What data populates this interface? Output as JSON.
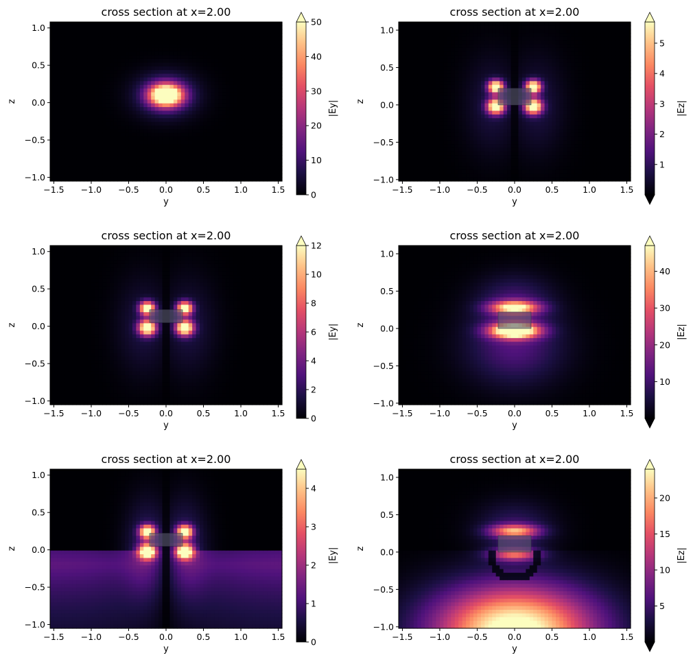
{
  "chart_data": [
    {
      "type": "heatmap",
      "title": "cross section at x=2.00",
      "xlabel": "y",
      "ylabel": "z",
      "xlim": [
        -1.55,
        1.55
      ],
      "ylim": [
        -1.05,
        1.08
      ],
      "xticks": [
        -1.5,
        -1.0,
        -0.5,
        0.0,
        0.5,
        1.0,
        1.5
      ],
      "xtick_labels": [
        "−1.5",
        "−1.0",
        "−0.5",
        "0.0",
        "0.5",
        "1.0",
        "1.5"
      ],
      "yticks": [
        -1.0,
        -0.5,
        0.0,
        0.5,
        1.0
      ],
      "ytick_labels": [
        "−1.0",
        "−0.5",
        "0.0",
        "0.5",
        "1.0"
      ],
      "colorbar": {
        "label": "|Ey|",
        "min": 0,
        "max": 50,
        "ticks": [
          0,
          10,
          20,
          30,
          40,
          50
        ],
        "tick_labels": [
          "0",
          "10",
          "20",
          "30",
          "40",
          "50"
        ],
        "extend": "max"
      },
      "colormap": "magma",
      "pattern": "central",
      "waveguide": {
        "y": [
          -0.22,
          0.22
        ],
        "z": [
          0.0,
          0.22
        ],
        "shown": false
      }
    },
    {
      "type": "heatmap",
      "title": "cross section at x=2.00",
      "xlabel": "y",
      "ylabel": "z",
      "xlim": [
        -1.55,
        1.55
      ],
      "ylim": [
        -1.02,
        1.11
      ],
      "xticks": [
        -1.5,
        -1.0,
        -0.5,
        0.0,
        0.5,
        1.0,
        1.5
      ],
      "xtick_labels": [
        "−1.5",
        "−1.0",
        "−0.5",
        "0.0",
        "0.5",
        "1.0",
        "1.5"
      ],
      "yticks": [
        -1.0,
        -0.5,
        0.0,
        0.5,
        1.0
      ],
      "ytick_labels": [
        "−1.0",
        "−0.5",
        "0.0",
        "0.5",
        "1.0"
      ],
      "colorbar": {
        "label": "|Ez|",
        "min": 0,
        "max": 5.7,
        "ticks": [
          1,
          2,
          3,
          4,
          5
        ],
        "tick_labels": [
          "1",
          "2",
          "3",
          "4",
          "5"
        ],
        "extend": "both"
      },
      "colormap": "magma",
      "pattern": "four-lobe",
      "waveguide": {
        "y": [
          -0.22,
          0.22
        ],
        "z": [
          0.0,
          0.22
        ],
        "shown": true
      }
    },
    {
      "type": "heatmap",
      "title": "cross section at x=2.00",
      "xlabel": "y",
      "ylabel": "z",
      "xlim": [
        -1.55,
        1.55
      ],
      "ylim": [
        -1.05,
        1.08
      ],
      "xticks": [
        -1.5,
        -1.0,
        -0.5,
        0.0,
        0.5,
        1.0,
        1.5
      ],
      "xtick_labels": [
        "−1.5",
        "−1.0",
        "−0.5",
        "0.0",
        "0.5",
        "1.0",
        "1.5"
      ],
      "yticks": [
        -1.0,
        -0.5,
        0.0,
        0.5,
        1.0
      ],
      "ytick_labels": [
        "−1.0",
        "−0.5",
        "0.0",
        "0.5",
        "1.0"
      ],
      "colorbar": {
        "label": "|Ey|",
        "min": 0,
        "max": 12,
        "ticks": [
          0,
          2,
          4,
          6,
          8,
          10,
          12
        ],
        "tick_labels": [
          "0",
          "2",
          "4",
          "6",
          "8",
          "10",
          "12"
        ],
        "extend": "max"
      },
      "colormap": "magma",
      "pattern": "four-lobe",
      "waveguide": {
        "y": [
          -0.22,
          0.22
        ],
        "z": [
          0.05,
          0.22
        ],
        "shown": true
      }
    },
    {
      "type": "heatmap",
      "title": "cross section at x=2.00",
      "xlabel": "y",
      "ylabel": "z",
      "xlim": [
        -1.55,
        1.55
      ],
      "ylim": [
        -1.02,
        1.11
      ],
      "xticks": [
        -1.5,
        -1.0,
        -0.5,
        0.0,
        0.5,
        1.0,
        1.5
      ],
      "xtick_labels": [
        "−1.5",
        "−1.0",
        "−0.5",
        "0.0",
        "0.5",
        "1.0",
        "1.5"
      ],
      "yticks": [
        -1.0,
        -0.5,
        0.0,
        0.5,
        1.0
      ],
      "ytick_labels": [
        "−1.0",
        "−0.5",
        "0.0",
        "0.5",
        "1.0"
      ],
      "colorbar": {
        "label": "|Ez|",
        "min": 0,
        "max": 47,
        "ticks": [
          10,
          20,
          30,
          40
        ],
        "tick_labels": [
          "10",
          "20",
          "30",
          "40"
        ],
        "extend": "both"
      },
      "colormap": "magma",
      "pattern": "top-bottom",
      "waveguide": {
        "y": [
          -0.22,
          0.22
        ],
        "z": [
          0.0,
          0.22
        ],
        "shown": true
      }
    },
    {
      "type": "heatmap",
      "title": "cross section at x=2.00",
      "xlabel": "y",
      "ylabel": "z",
      "xlim": [
        -1.55,
        1.55
      ],
      "ylim": [
        -1.05,
        1.08
      ],
      "xticks": [
        -1.5,
        -1.0,
        -0.5,
        0.0,
        0.5,
        1.0,
        1.5
      ],
      "xtick_labels": [
        "−1.5",
        "−1.0",
        "−0.5",
        "0.0",
        "0.5",
        "1.0",
        "1.5"
      ],
      "yticks": [
        -1.0,
        -0.5,
        0.0,
        0.5,
        1.0
      ],
      "ytick_labels": [
        "−1.0",
        "−0.5",
        "0.0",
        "0.5",
        "1.0"
      ],
      "colorbar": {
        "label": "|Ey|",
        "min": 0,
        "max": 4.5,
        "ticks": [
          0,
          1,
          2,
          3,
          4
        ],
        "tick_labels": [
          "0",
          "1",
          "2",
          "3",
          "4"
        ],
        "extend": "max"
      },
      "colormap": "magma",
      "pattern": "four-lobe-substrate",
      "waveguide": {
        "y": [
          -0.22,
          0.22
        ],
        "z": [
          0.05,
          0.22
        ],
        "shown": true
      }
    },
    {
      "type": "heatmap",
      "title": "cross section at x=2.00",
      "xlabel": "y",
      "ylabel": "z",
      "xlim": [
        -1.55,
        1.55
      ],
      "ylim": [
        -1.02,
        1.11
      ],
      "xticks": [
        -1.5,
        -1.0,
        -0.5,
        0.0,
        0.5,
        1.0,
        1.5
      ],
      "xtick_labels": [
        "−1.5",
        "−1.0",
        "−0.5",
        "0.0",
        "0.5",
        "1.0",
        "1.5"
      ],
      "yticks": [
        -1.0,
        -0.5,
        0.0,
        0.5,
        1.0
      ],
      "ytick_labels": [
        "−1.0",
        "−0.5",
        "0.0",
        "0.5",
        "1.0"
      ],
      "colorbar": {
        "label": "|Ez|",
        "min": 0,
        "max": 24,
        "ticks": [
          5,
          10,
          15,
          20
        ],
        "tick_labels": [
          "5",
          "10",
          "15",
          "20"
        ],
        "extend": "both"
      },
      "colormap": "magma",
      "pattern": "top-substrate",
      "waveguide": {
        "y": [
          -0.22,
          0.22
        ],
        "z": [
          0.0,
          0.22
        ],
        "shown": true
      }
    }
  ]
}
